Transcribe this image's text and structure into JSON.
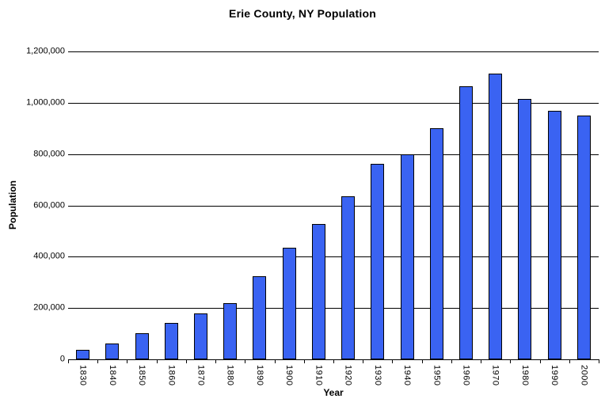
{
  "chart_data": {
    "type": "bar",
    "title": "Erie County, NY Population",
    "xlabel": "Year",
    "ylabel": "Population",
    "categories": [
      "1830",
      "1840",
      "1850",
      "1860",
      "1870",
      "1880",
      "1890",
      "1900",
      "1910",
      "1920",
      "1930",
      "1940",
      "1950",
      "1960",
      "1970",
      "1980",
      "1990",
      "2000"
    ],
    "values": [
      35719,
      62465,
      100993,
      141971,
      178699,
      219884,
      322981,
      433686,
      528985,
      634688,
      762408,
      798377,
      899238,
      1064688,
      1113491,
      1015472,
      968532,
      950265
    ],
    "ylim": [
      0,
      1200000
    ],
    "ytick_step": 200000,
    "ytick_labels": [
      "0",
      "200,000",
      "400,000",
      "600,000",
      "800,000",
      "1,000,000",
      "1,200,000"
    ],
    "grid": "horizontal gridlines on, black",
    "legend": "none",
    "bar_color": "#3A63F2",
    "bar_border_color": "#000000",
    "gridline_color": "#000000",
    "text_color": "#000000",
    "background_color": "#FFFFFF"
  }
}
